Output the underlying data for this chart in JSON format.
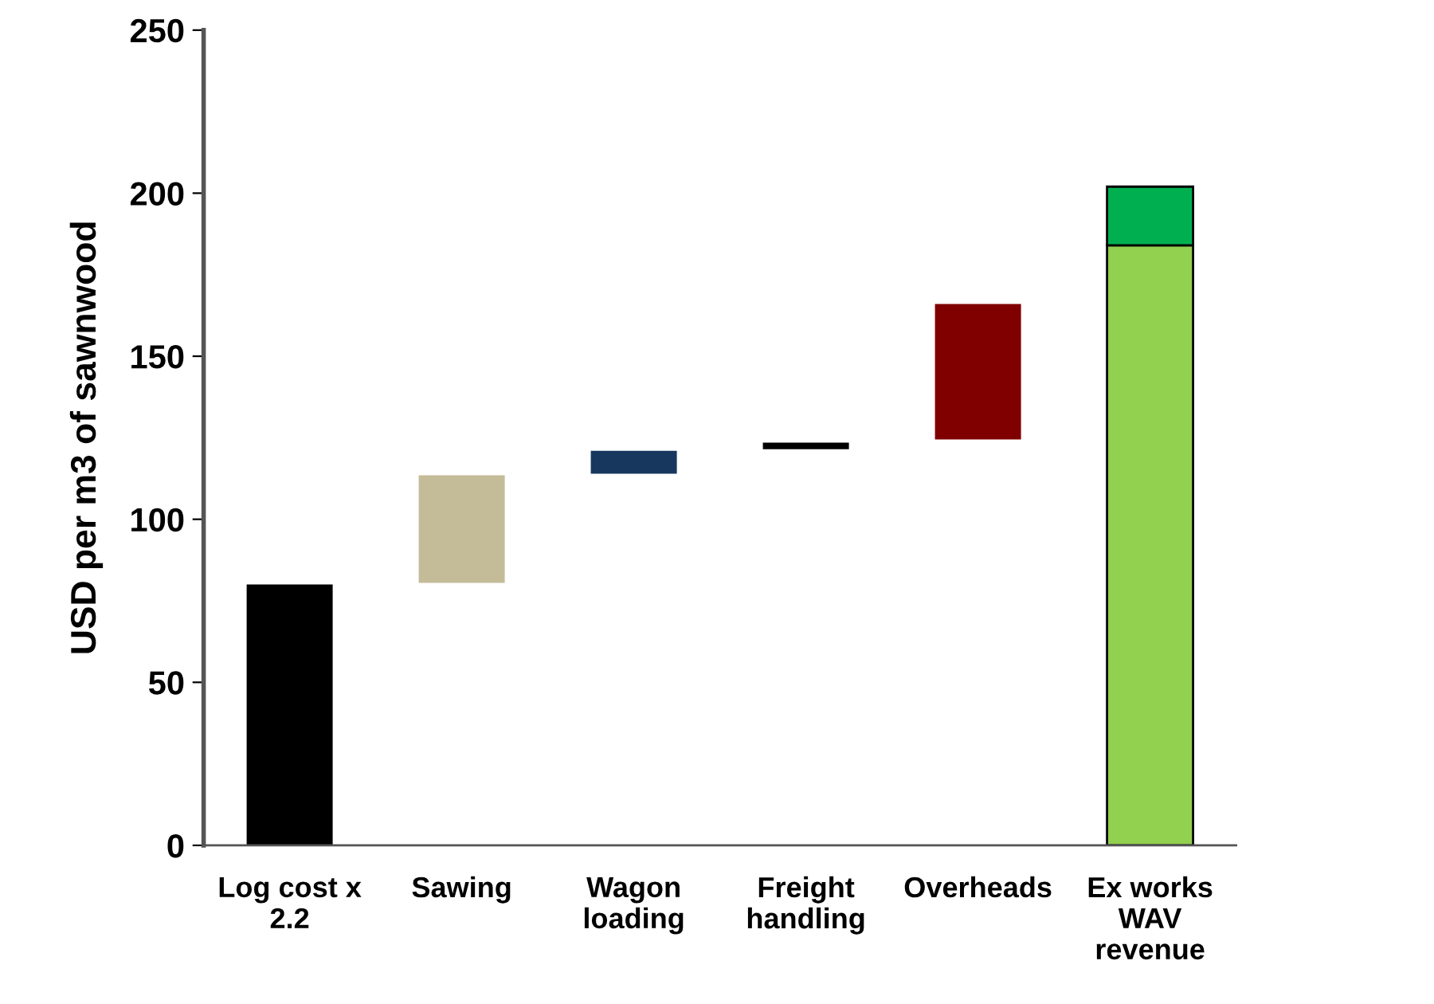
{
  "chart_data": {
    "type": "bar",
    "ylabel": "USD per m3 of sawnwood",
    "categories": [
      "Log cost x\n2.2",
      "Sawing",
      "Wagon\nloading",
      "Freight\nhandling",
      "Overheads",
      "Ex works\nWAV\nrevenue"
    ],
    "series": [
      {
        "values": [
          80,
          33,
          7,
          2,
          41.5,
          184
        ],
        "base": [
          0,
          80.5,
          114,
          121.5,
          124.5,
          0
        ],
        "colors": [
          "#000000",
          "#c4bc98",
          "#17375e",
          "#000000",
          "#800000",
          "#92d050"
        ]
      },
      {
        "values": [
          null,
          null,
          null,
          null,
          null,
          18
        ],
        "base": [
          null,
          null,
          null,
          null,
          null,
          184
        ],
        "colors": [
          "#00b050",
          "#00b050",
          "#00b050",
          "#00b050",
          "#00b050",
          "#00b050"
        ]
      }
    ],
    "ylim": [
      0,
      250
    ],
    "yticks": [
      0,
      50,
      100,
      150,
      200,
      250
    ],
    "grid": false,
    "legend": false
  }
}
